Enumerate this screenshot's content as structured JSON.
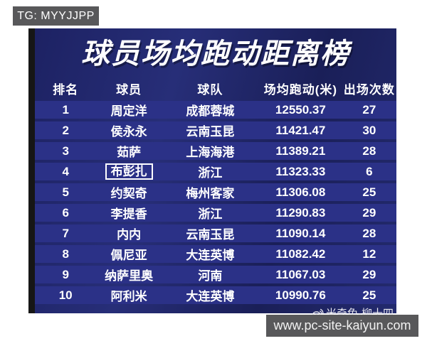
{
  "badges": {
    "tg_label": "TG: MYYJJPP",
    "site_label": "www.pc-site-kaiyun.com"
  },
  "board": {
    "title": "球员场均跑动距离榜",
    "watermark": "米奇兔-柳十四"
  },
  "table": {
    "headers": [
      "排名",
      "球员",
      "球队",
      "场均跑动(米)",
      "出场次数"
    ],
    "rows": [
      {
        "rank": "1",
        "player": "周定洋",
        "team": "成都蓉城",
        "distance": "12550.37",
        "appearances": "27",
        "highlighted": false
      },
      {
        "rank": "2",
        "player": "侯永永",
        "team": "云南玉昆",
        "distance": "11421.47",
        "appearances": "30",
        "highlighted": false
      },
      {
        "rank": "3",
        "player": "茹萨",
        "team": "上海海港",
        "distance": "11389.21",
        "appearances": "28",
        "highlighted": false
      },
      {
        "rank": "4",
        "player": "布彭扎",
        "team": "浙江",
        "distance": "11323.33",
        "appearances": "6",
        "highlighted": true
      },
      {
        "rank": "5",
        "player": "约契奇",
        "team": "梅州客家",
        "distance": "11306.08",
        "appearances": "25",
        "highlighted": false
      },
      {
        "rank": "6",
        "player": "李提香",
        "team": "浙江",
        "distance": "11290.83",
        "appearances": "29",
        "highlighted": false
      },
      {
        "rank": "7",
        "player": "内内",
        "team": "云南玉昆",
        "distance": "11090.14",
        "appearances": "28",
        "highlighted": false
      },
      {
        "rank": "8",
        "player": "佩尼亚",
        "team": "大连英博",
        "distance": "11082.42",
        "appearances": "12",
        "highlighted": false
      },
      {
        "rank": "9",
        "player": "纳萨里奥",
        "team": "河南",
        "distance": "11067.03",
        "appearances": "29",
        "highlighted": false
      },
      {
        "rank": "10",
        "player": "阿利米",
        "team": "大连英博",
        "distance": "10990.76",
        "appearances": "25",
        "highlighted": false
      }
    ]
  },
  "colors": {
    "board_background": "#1f2566",
    "row_band": "#2b3187",
    "board_edge": "#161616",
    "badge_background": "#58585a",
    "text": "#ffffff"
  },
  "chart_data": {
    "type": "table",
    "title": "球员场均跑动距离榜",
    "columns": [
      "排名",
      "球员",
      "球队",
      "场均跑动(米)",
      "出场次数"
    ],
    "rows": [
      [
        1,
        "周定洋",
        "成都蓉城",
        12550.37,
        27
      ],
      [
        2,
        "侯永永",
        "云南玉昆",
        11421.47,
        30
      ],
      [
        3,
        "茹萨",
        "上海海港",
        11389.21,
        28
      ],
      [
        4,
        "布彭扎",
        "浙江",
        11323.33,
        6
      ],
      [
        5,
        "约契奇",
        "梅州客家",
        11306.08,
        25
      ],
      [
        6,
        "李提香",
        "浙江",
        11290.83,
        29
      ],
      [
        7,
        "内内",
        "云南玉昆",
        11090.14,
        28
      ],
      [
        8,
        "佩尼亚",
        "大连英博",
        11082.42,
        12
      ],
      [
        9,
        "纳萨里奥",
        "河南",
        11067.03,
        29
      ],
      [
        10,
        "阿利米",
        "大连英博",
        10990.76,
        25
      ]
    ],
    "notes": "Row 4 player name (布彭扎) is outlined with a white box in the source image"
  }
}
